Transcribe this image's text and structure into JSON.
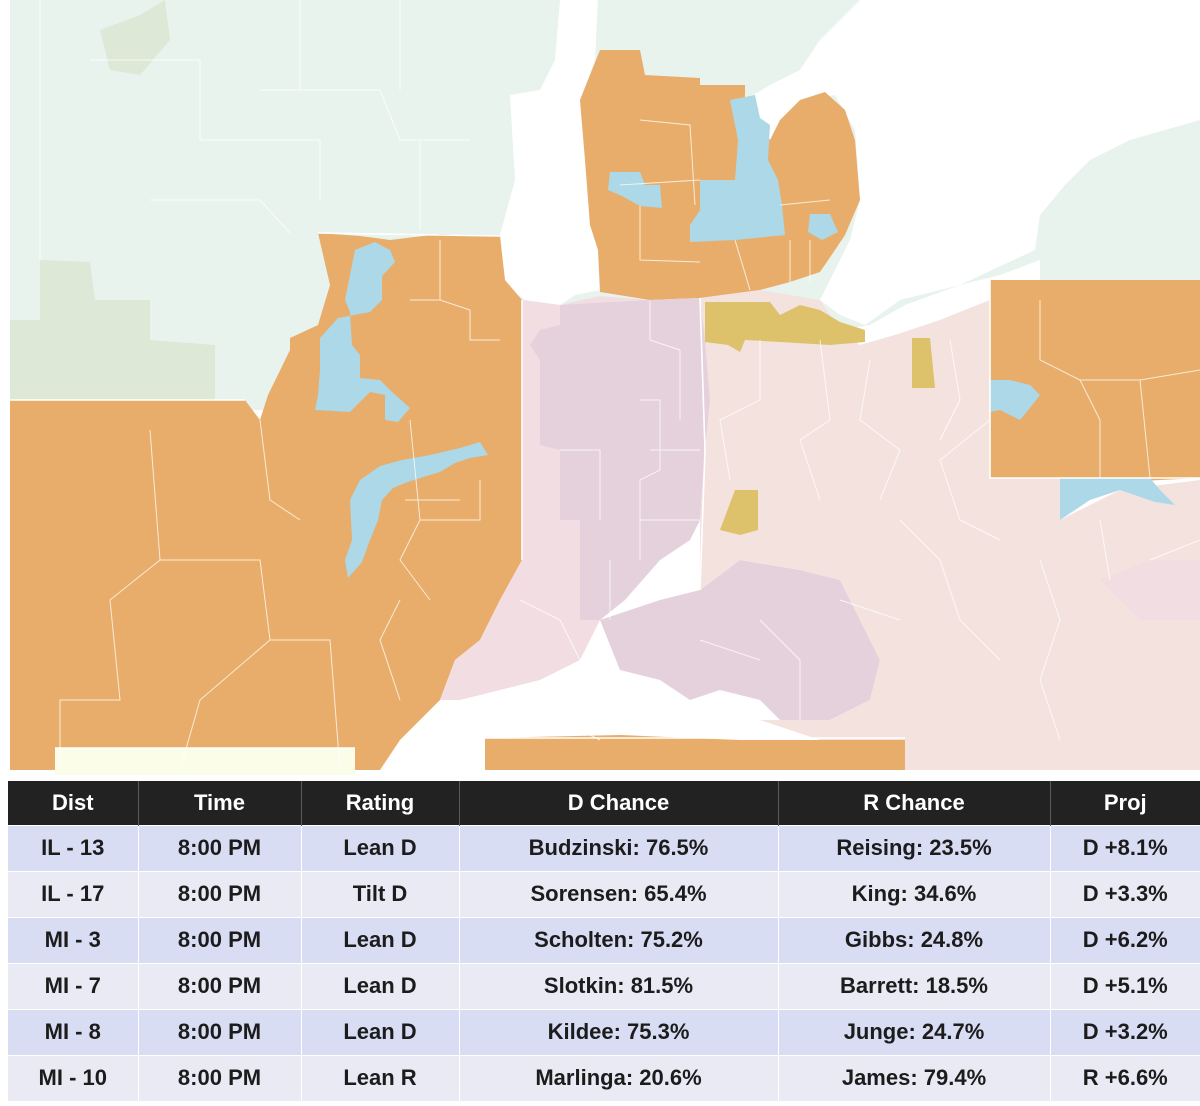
{
  "map": {
    "legend": {
      "safe_r_color": "#e8f3ee",
      "likely_r_color": "#dde8d7",
      "tossup_r_color": "#e8ad6a",
      "lean_d_color": "#acd8e7",
      "gold_color": "#ddc16b",
      "indiana_color": "#e4d1dc",
      "indiana_light_color": "#f1dde2",
      "ohio_color": "#f4e2df",
      "pale_yellow_color": "#fbfde8",
      "water_color": "#ffffff"
    }
  },
  "table": {
    "headers": [
      "Dist",
      "Time",
      "Rating",
      "D Chance",
      "R Chance",
      "Proj"
    ],
    "rows": [
      {
        "dist": "IL - 13",
        "time": "8:00 PM",
        "rating": "Lean D",
        "d_chance": "Budzinski: 76.5%",
        "r_chance": "Reising: 23.5%",
        "proj": "D +8.1%"
      },
      {
        "dist": "IL - 17",
        "time": "8:00 PM",
        "rating": "Tilt D",
        "d_chance": "Sorensen: 65.4%",
        "r_chance": "King: 34.6%",
        "proj": "D +3.3%"
      },
      {
        "dist": "MI - 3",
        "time": "8:00 PM",
        "rating": "Lean D",
        "d_chance": "Scholten: 75.2%",
        "r_chance": "Gibbs: 24.8%",
        "proj": "D +6.2%"
      },
      {
        "dist": "MI - 7",
        "time": "8:00 PM",
        "rating": "Lean D",
        "d_chance": "Slotkin: 81.5%",
        "r_chance": "Barrett: 18.5%",
        "proj": "D +5.1%"
      },
      {
        "dist": "MI - 8",
        "time": "8:00 PM",
        "rating": "Lean D",
        "d_chance": "Kildee: 75.3%",
        "r_chance": "Junge: 24.7%",
        "proj": "D +3.2%"
      },
      {
        "dist": "MI - 10",
        "time": "8:00 PM",
        "rating": "Lean R",
        "d_chance": "Marlinga: 20.6%",
        "r_chance": "James: 79.4%",
        "proj": "R +6.6%"
      }
    ]
  }
}
